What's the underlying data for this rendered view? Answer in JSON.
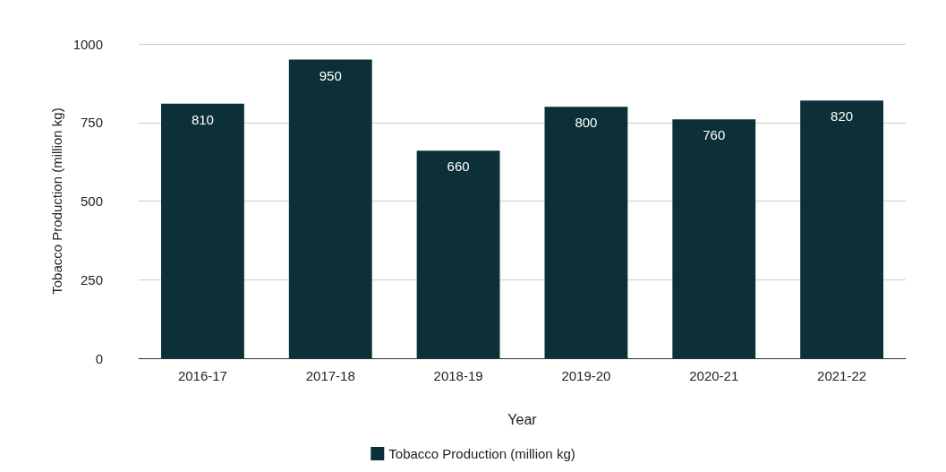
{
  "chart_data": {
    "type": "bar",
    "xlabel": "Year",
    "ylabel": "Tobacco Production (million kg)",
    "categories": [
      "2016-17",
      "2017-18",
      "2018-19",
      "2019-20",
      "2020-21",
      "2021-22"
    ],
    "series": [
      {
        "name": "Tobacco Production (million kg)",
        "color": "#0d3038",
        "values": [
          810,
          950,
          660,
          800,
          760,
          820
        ]
      }
    ],
    "ylim": [
      0,
      1000
    ],
    "yticks": [
      0,
      250,
      500,
      750,
      1000
    ],
    "grid": "y",
    "legend": "bottom",
    "data_labels": true
  }
}
